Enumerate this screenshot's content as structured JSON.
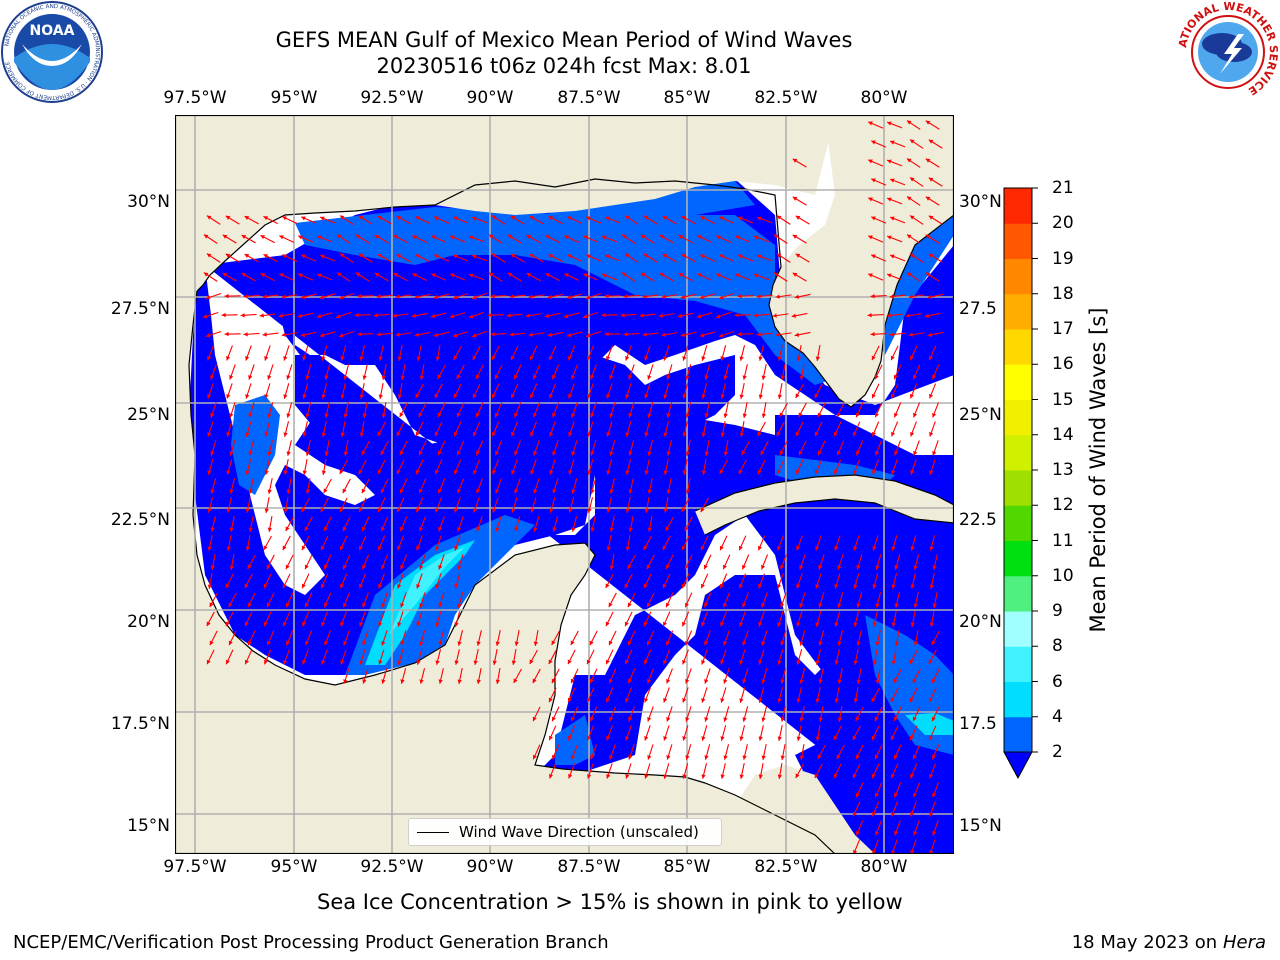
{
  "header": {
    "title_line1": "GEFS MEAN Gulf of Mexico Mean Period of Wind Waves",
    "title_line2": "20230516 t06z 024h fcst   Max: 8.01"
  },
  "map": {
    "lon_labels": [
      "97.5°W",
      "95°W",
      "92.5°W",
      "90°W",
      "87.5°W",
      "85°W",
      "82.5°W",
      "80°W"
    ],
    "lat_labels_left": [
      "30°N",
      "27.5°N",
      "25°N",
      "22.5°N",
      "20°N",
      "17.5°N",
      "15°N"
    ],
    "lat_labels_right": [
      "30°N",
      "27.5",
      "25°N",
      "22.5",
      "20°N",
      "17.5",
      "15°N"
    ],
    "land_color": "#efedda",
    "no_data_color": "#ffffff",
    "arrow_color": "#ff0000",
    "legend_label": "Wind Wave Direction (unscaled)"
  },
  "colorbar": {
    "title": "Mean Period of Wind Waves [s]",
    "labels": [
      "2",
      "4",
      "6",
      "8",
      "9",
      "10",
      "11",
      "12",
      "13",
      "14",
      "15",
      "16",
      "17",
      "18",
      "19",
      "20",
      "21"
    ],
    "colors": [
      "#0066ff",
      "#00ddff",
      "#40f2ff",
      "#a0ffff",
      "#50f080",
      "#00e010",
      "#50d800",
      "#a0e000",
      "#d0f000",
      "#f0f000",
      "#ffff00",
      "#ffd800",
      "#ffae00",
      "#ff8800",
      "#ff5800",
      "#ff2800"
    ],
    "under_color": "#0000ff"
  },
  "footer": {
    "sea_ice_note": "Sea Ice Concentration > 15% is shown in pink to yellow",
    "producer": "NCEP/EMC/Verification Post Processing Product Generation Branch",
    "date": "18 May 2023 on",
    "machine": "Hera"
  },
  "logos": {
    "left_text": "NOAA",
    "left_ring_text": "NATIONAL OCEANIC AND ATMOSPHERIC ADMINISTRATION · U.S. DEPARTMENT OF COMMERCE",
    "right_ring_text": "NATIONAL WEATHER SERVICE"
  }
}
